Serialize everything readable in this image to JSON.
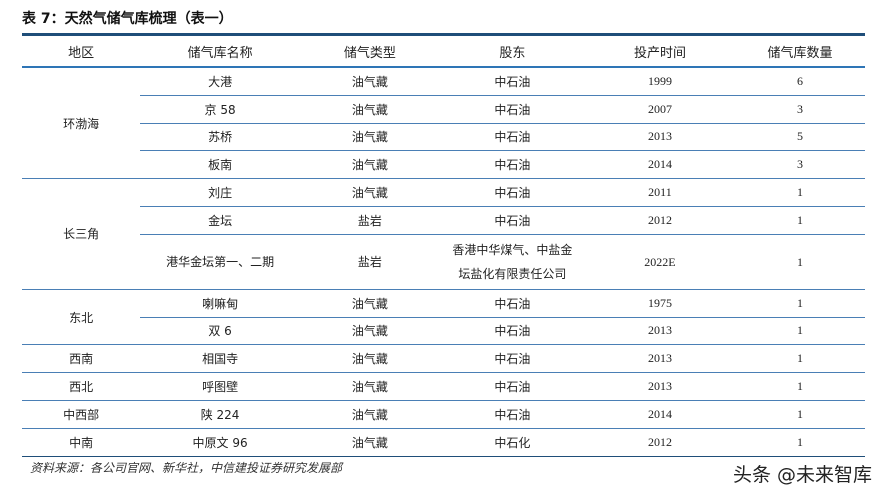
{
  "title": "表 7：天然气储气库梳理（表一）",
  "headers": [
    "地区",
    "储气库名称",
    "储气类型",
    "股东",
    "投产时间",
    "储气库数量"
  ],
  "groups": [
    {
      "region": "环渤海",
      "rows": [
        [
          "大港",
          "油气藏",
          "中石油",
          "1999",
          "6"
        ],
        [
          "京 58",
          "油气藏",
          "中石油",
          "2007",
          "3"
        ],
        [
          "苏桥",
          "油气藏",
          "中石油",
          "2013",
          "5"
        ],
        [
          "板南",
          "油气藏",
          "中石油",
          "2014",
          "3"
        ]
      ]
    },
    {
      "region": "长三角",
      "rows": [
        [
          "刘庄",
          "油气藏",
          "中石油",
          "2011",
          "1"
        ],
        [
          "金坛",
          "盐岩",
          "中石油",
          "2012",
          "1"
        ],
        [
          "港华金坛第一、二期",
          "盐岩",
          "香港中华煤气、中盐金坛盐化有限责任公司",
          "2022E",
          "1"
        ]
      ]
    },
    {
      "region": "东北",
      "rows": [
        [
          "喇嘛甸",
          "油气藏",
          "中石油",
          "1975",
          "1"
        ],
        [
          "双 6",
          "油气藏",
          "中石油",
          "2013",
          "1"
        ]
      ]
    },
    {
      "region": "西南",
      "rows": [
        [
          "相国寺",
          "油气藏",
          "中石油",
          "2013",
          "1"
        ]
      ]
    },
    {
      "region": "西北",
      "rows": [
        [
          "呼图壁",
          "油气藏",
          "中石油",
          "2013",
          "1"
        ]
      ]
    },
    {
      "region": "中西部",
      "rows": [
        [
          "陕 224",
          "油气藏",
          "中石油",
          "2014",
          "1"
        ]
      ]
    },
    {
      "region": "中南",
      "rows": [
        [
          "中原文 96",
          "油气藏",
          "中石化",
          "2012",
          "1"
        ]
      ]
    }
  ],
  "source": "资料来源：各公司官网、新华社，中信建投证券研究发展部",
  "watermark": "头条 @未来智库"
}
